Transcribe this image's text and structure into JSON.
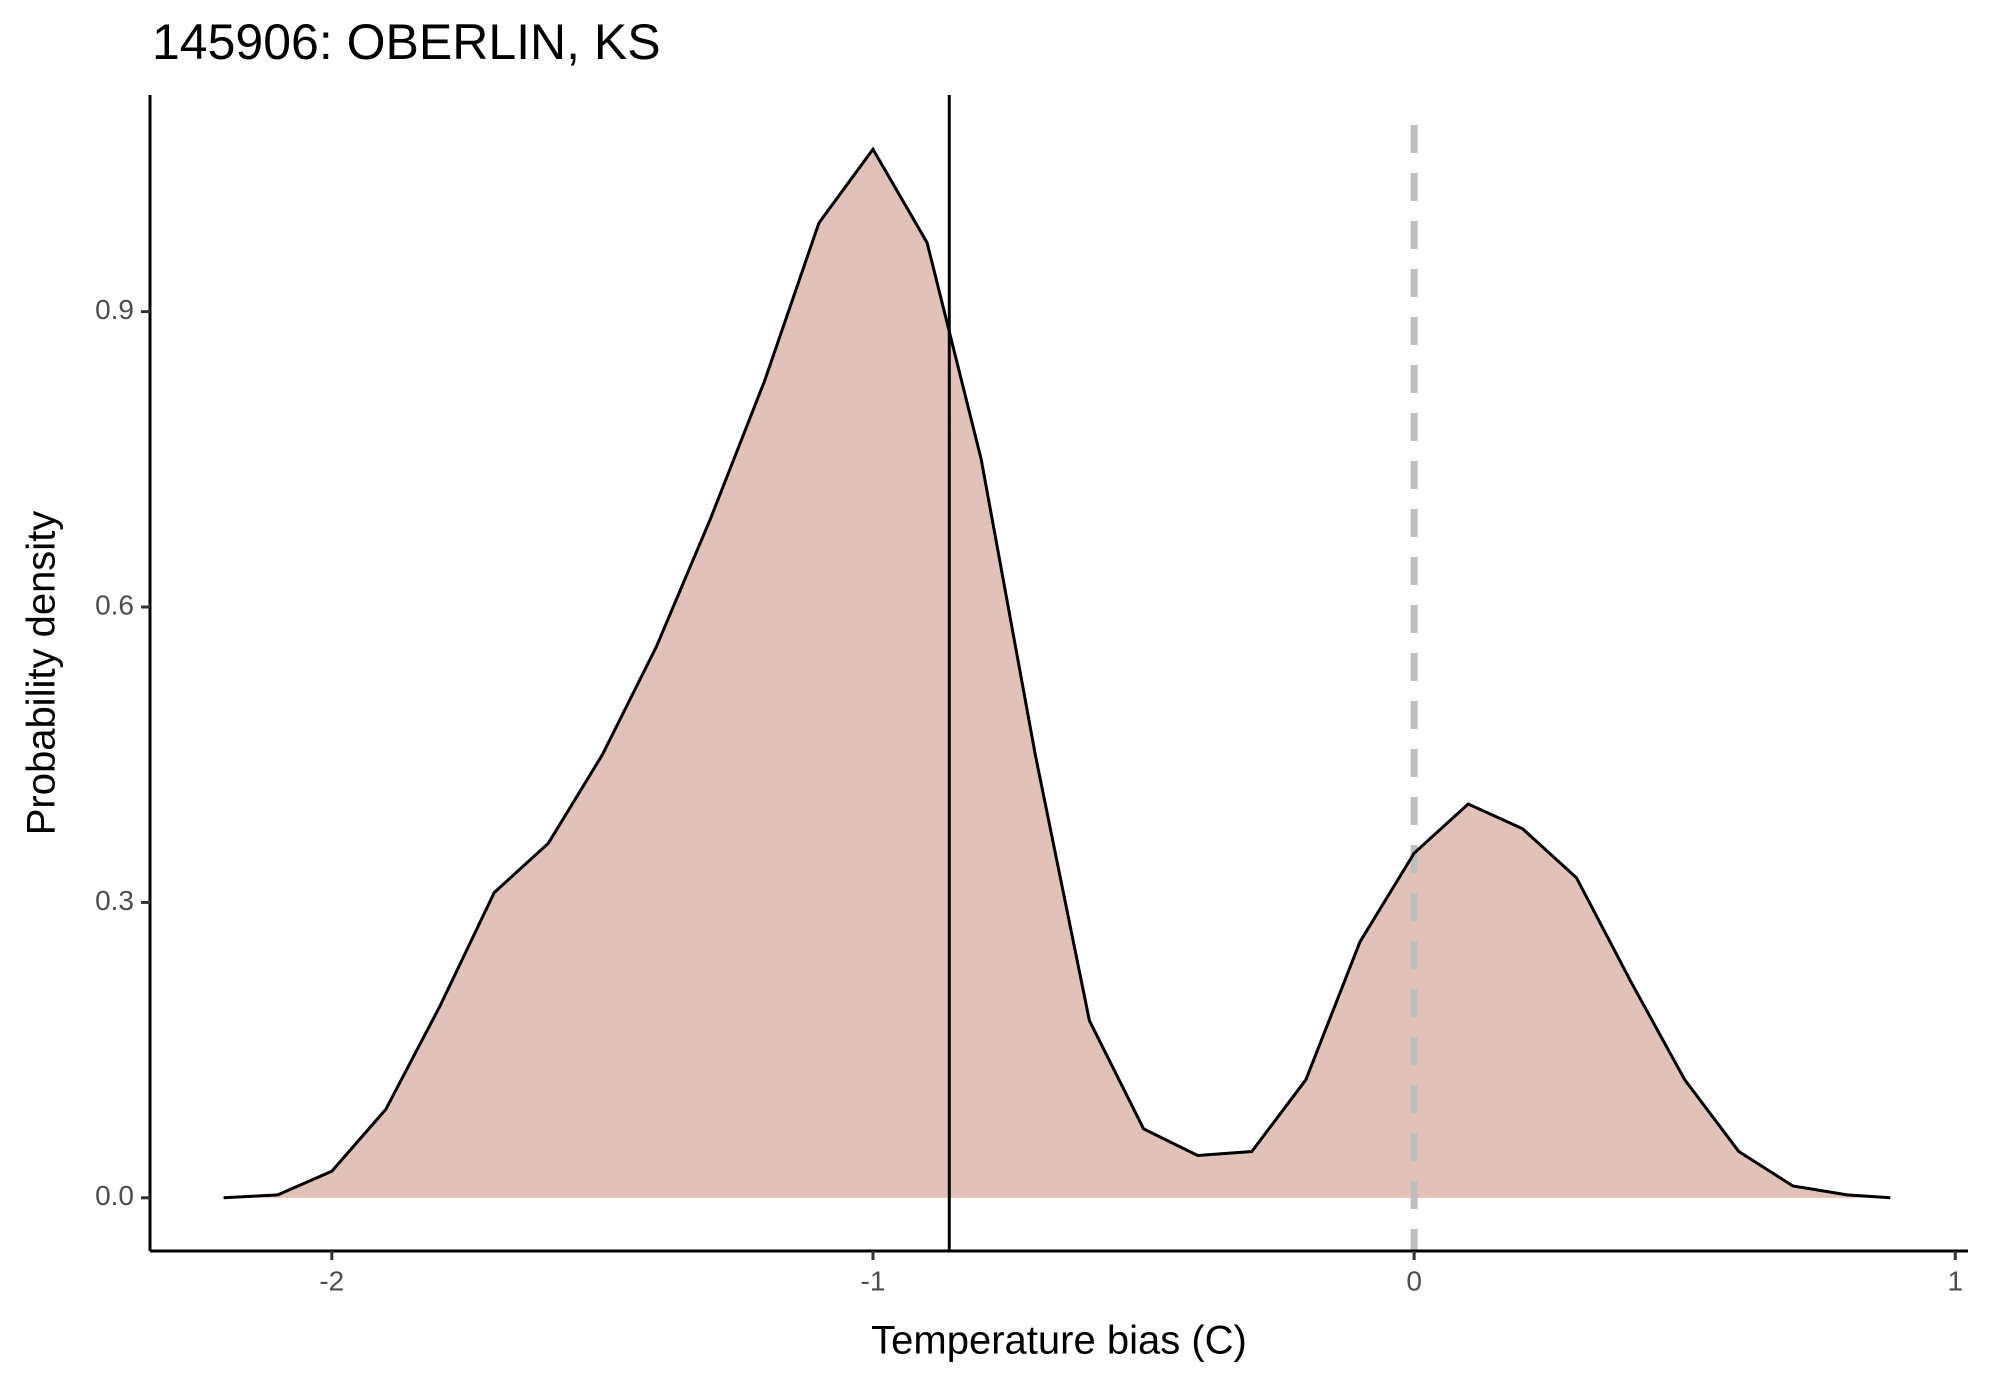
{
  "chart_data": {
    "type": "density",
    "title": "145906: OBERLIN, KS",
    "x_label": "Temperature bias (C)",
    "y_label": "Probability density",
    "x": [
      -2.2,
      -2.1,
      -2.0,
      -1.9,
      -1.8,
      -1.7,
      -1.6,
      -1.5,
      -1.4,
      -1.3,
      -1.2,
      -1.1,
      -1.0,
      -0.9,
      -0.8,
      -0.7,
      -0.6,
      -0.5,
      -0.4,
      -0.3,
      -0.2,
      -0.1,
      0.0,
      0.1,
      0.2,
      0.3,
      0.4,
      0.5,
      0.6,
      0.7,
      0.8,
      0.88
    ],
    "y": [
      0.0,
      0.003,
      0.027,
      0.09,
      0.195,
      0.31,
      0.36,
      0.45,
      0.56,
      0.69,
      0.83,
      0.99,
      1.065,
      0.97,
      0.75,
      0.45,
      0.18,
      0.07,
      0.043,
      0.047,
      0.12,
      0.26,
      0.35,
      0.4,
      0.375,
      0.325,
      0.22,
      0.12,
      0.047,
      0.012,
      0.003,
      0.0
    ],
    "fill": "#e2c2b8",
    "line_color": "#000000",
    "vlines": [
      {
        "x": -0.859,
        "color": "#000000",
        "dashed": false
      },
      {
        "x": 0,
        "color": "#bebebe",
        "dashed": true
      }
    ],
    "xlim": [
      -2.336,
      1.0235
    ],
    "ylim": [
      -0.054,
      1.12
    ],
    "xticks": [
      -2,
      -1,
      0,
      1
    ],
    "yticks": [
      {
        "value": 0,
        "label": "0.0"
      },
      0.3,
      0.6,
      0.9
    ]
  }
}
